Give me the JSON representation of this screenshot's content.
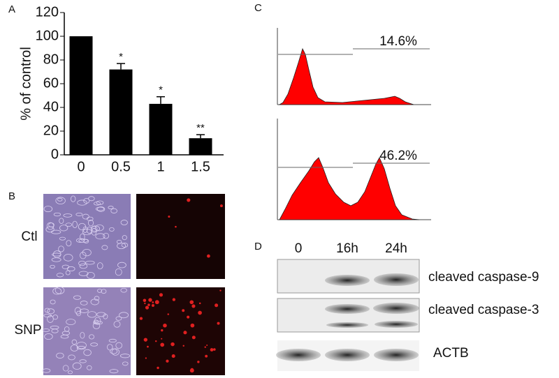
{
  "chart_data": {
    "type": "bar",
    "panel": "A",
    "ylabel": "% of control",
    "categories": [
      "0",
      "0.5",
      "1",
      "1.5"
    ],
    "values": [
      100,
      72,
      43,
      14
    ],
    "errors": [
      0,
      5,
      6,
      3
    ],
    "significance": [
      null,
      "*",
      "*",
      "**"
    ],
    "color": "#000000",
    "ylim": [
      0,
      120
    ],
    "yticks": [
      0,
      20,
      40,
      60,
      80,
      100,
      120
    ]
  },
  "panel_b": {
    "label": "B",
    "rows": [
      "Ctl",
      "SNP"
    ]
  },
  "panel_c": {
    "label": "C",
    "percents": [
      "14.6%",
      "46.2%"
    ]
  },
  "panel_d": {
    "label": "D",
    "lanes": [
      "0",
      "16h",
      "24h"
    ],
    "bands": [
      "cleaved caspase-9",
      "cleaved caspase-3",
      "ACTB"
    ]
  }
}
